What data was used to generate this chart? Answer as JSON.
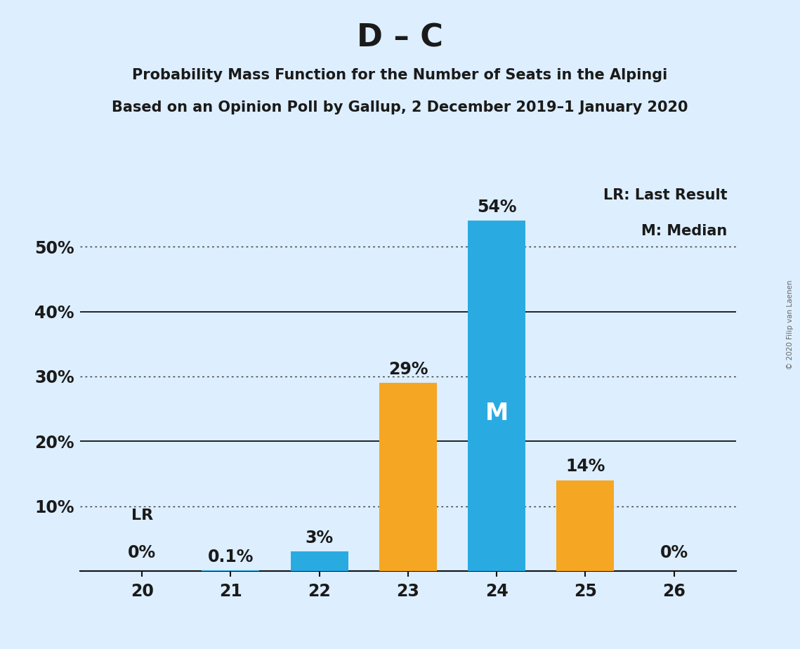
{
  "title": "D – C",
  "subtitle1": "Probability Mass Function for the Number of Seats in the Alpingi",
  "subtitle2": "Based on an Opinion Poll by Gallup, 2 December 2019–1 January 2020",
  "watermark": "© 2020 Filip van Laenen",
  "categories": [
    20,
    21,
    22,
    23,
    24,
    25,
    26
  ],
  "values": [
    0.0,
    0.1,
    3.0,
    29.0,
    54.0,
    14.0,
    0.0
  ],
  "colors": [
    "#29ABE2",
    "#29ABE2",
    "#29ABE2",
    "#F5A623",
    "#29ABE2",
    "#F5A623",
    "#F5A623"
  ],
  "bar_labels": [
    "0%",
    "0.1%",
    "3%",
    "29%",
    "54%",
    "14%",
    "0%"
  ],
  "show_bar_label": [
    true,
    true,
    true,
    true,
    true,
    true,
    true
  ],
  "median_bar_idx": 4,
  "lr_bar_idx": 0,
  "lr_label": "LR",
  "median_label": "M",
  "legend_lr": "LR: Last Result",
  "legend_m": "M: Median",
  "background_color": "#DDEEFF",
  "ylim_max": 60,
  "solid_grid": [
    20,
    40
  ],
  "dotted_grid": [
    10,
    30,
    50
  ],
  "ytick_positions": [
    10,
    20,
    30,
    40,
    50
  ],
  "ytick_labels": [
    "10%",
    "20%",
    "30%",
    "40%",
    "50%"
  ],
  "title_fontsize": 32,
  "subtitle_fontsize": 15,
  "tick_fontsize": 17,
  "bar_label_fontsize": 17,
  "legend_fontsize": 15,
  "lr_fontsize": 16,
  "median_fontsize": 24
}
